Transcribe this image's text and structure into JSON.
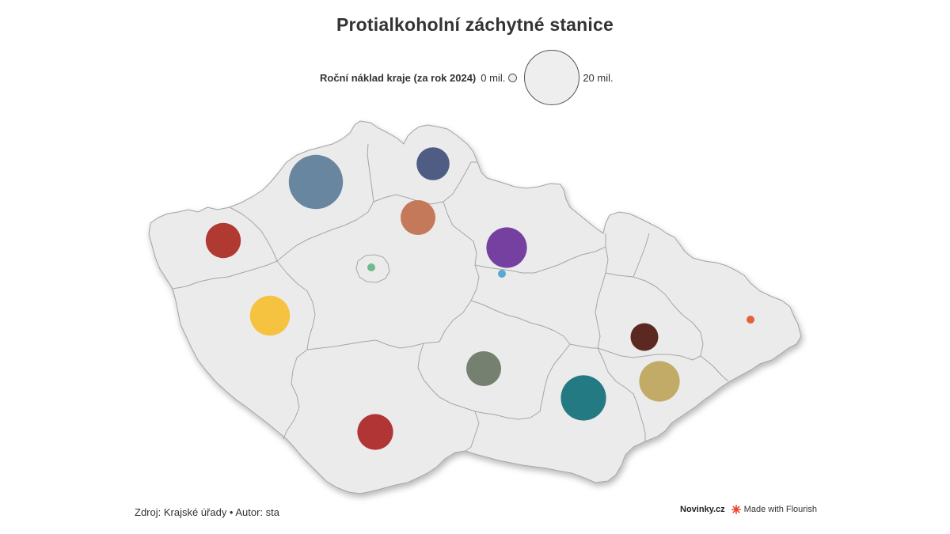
{
  "title": "Protialkoholní záchytné stanice",
  "legend": {
    "label": "Roční náklad kraje (za rok 2024)",
    "min_label": "0 mil.",
    "max_label": "20 mil.",
    "min_value": 0,
    "max_value": 20
  },
  "footer": {
    "source": "Zdroj: Krajské úřady • Autor: sta",
    "brand": "Novinky.cz",
    "made_with": "Made with Flourish"
  },
  "colors": {
    "land": "#ebebeb",
    "border": "#a3a3a3",
    "flourish": "#e8442e"
  },
  "bubbles": [
    {
      "region": "Ústecký",
      "value_mil": 20.2,
      "color": "#6986a0"
    },
    {
      "region": "Karlovarský",
      "value_mil": 8.5,
      "color": "#b03a32"
    },
    {
      "region": "Liberecký",
      "value_mil": 7.5,
      "color": "#4f5d85"
    },
    {
      "region": "Středočeský",
      "value_mil": 8.4,
      "color": "#c47a5a"
    },
    {
      "region": "Praha",
      "value_mil": 0.4,
      "color": "#6fba8a"
    },
    {
      "region": "Královéhradecký",
      "value_mil": 11.3,
      "color": "#7540a0"
    },
    {
      "region": "Pardubický",
      "value_mil": 0.3,
      "color": "#5aa8d6"
    },
    {
      "region": "Plzeňský",
      "value_mil": 11.0,
      "color": "#f5c33f"
    },
    {
      "region": "Vysočina",
      "value_mil": 8.4,
      "color": "#768070"
    },
    {
      "region": "Jihočeský",
      "value_mil": 8.8,
      "color": "#b23535"
    },
    {
      "region": "Jihomoravský",
      "value_mil": 14.2,
      "color": "#237a82"
    },
    {
      "region": "Olomoucký",
      "value_mil": 5.3,
      "color": "#5b2822"
    },
    {
      "region": "Zlínský",
      "value_mil": 11.3,
      "color": "#c2aa67"
    },
    {
      "region": "Moravskoslezský",
      "value_mil": 0.3,
      "color": "#e2623a"
    }
  ]
}
